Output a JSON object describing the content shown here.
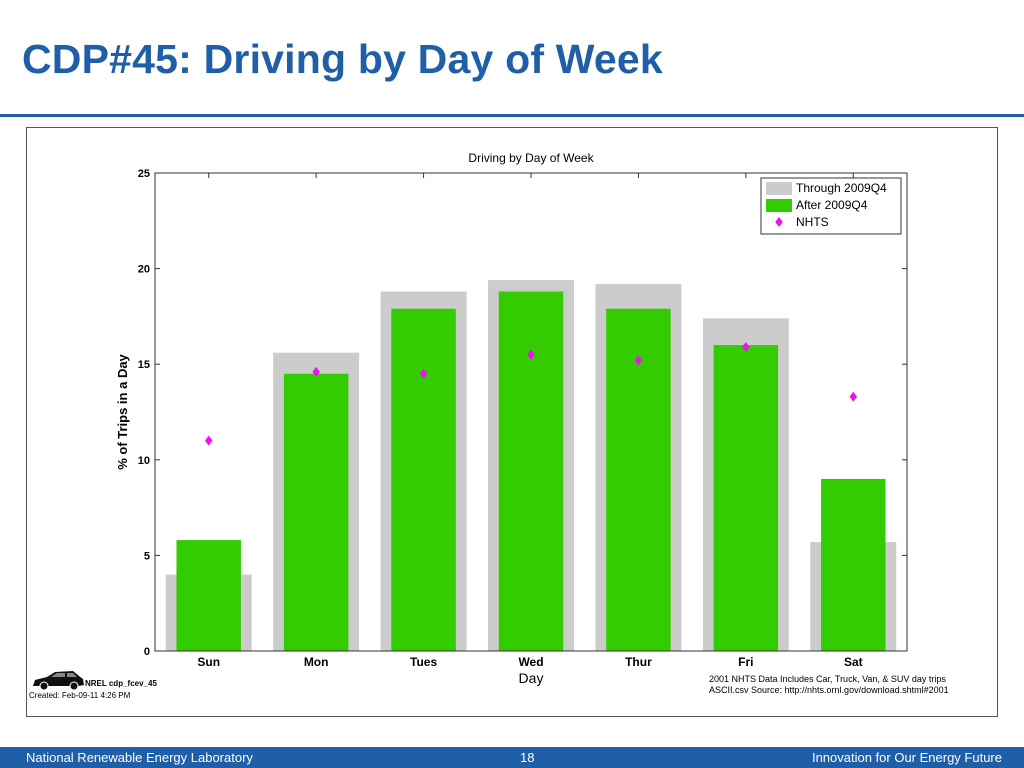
{
  "slide": {
    "title": "CDP#45: Driving by Day of Week"
  },
  "footer": {
    "org": "National Renewable Energy Laboratory",
    "page": "18",
    "tagline": "Innovation for Our Energy Future"
  },
  "colors": {
    "title": "#1f5fa8",
    "through_2009q4": "#cccccc",
    "after_2009q4": "#33cc00",
    "nhts": "#ee11ee"
  },
  "chart_data": {
    "type": "bar",
    "title": "Driving by Day of Week",
    "xlabel": "Day",
    "ylabel": "% of Trips in a Day",
    "ylim": [
      0,
      25
    ],
    "yticks": [
      0,
      5,
      10,
      15,
      20,
      25
    ],
    "categories": [
      "Sun",
      "Mon",
      "Tues",
      "Wed",
      "Thur",
      "Fri",
      "Sat"
    ],
    "legend_position": "top-right",
    "grid": false,
    "series": [
      {
        "name": "Through 2009Q4",
        "kind": "bar",
        "values": [
          4.0,
          15.6,
          18.8,
          19.4,
          19.2,
          17.4,
          5.7
        ]
      },
      {
        "name": "After 2009Q4",
        "kind": "bar",
        "values": [
          5.8,
          14.5,
          17.9,
          18.8,
          17.9,
          16.0,
          9.0
        ]
      },
      {
        "name": "NHTS",
        "kind": "marker",
        "marker": "diamond",
        "values": [
          11.0,
          14.6,
          14.5,
          15.5,
          15.2,
          15.9,
          13.3
        ]
      }
    ],
    "annotations": {
      "car_label": "NREL cdp_fcev_45",
      "created": "Created: Feb-09-11  4:26 PM",
      "source_line1": "2001 NHTS Data Includes Car, Truck, Van, & SUV day trips",
      "source_line2": "ASCII.csv Source: http://nhts.ornl.gov/download.shtml#2001"
    }
  }
}
